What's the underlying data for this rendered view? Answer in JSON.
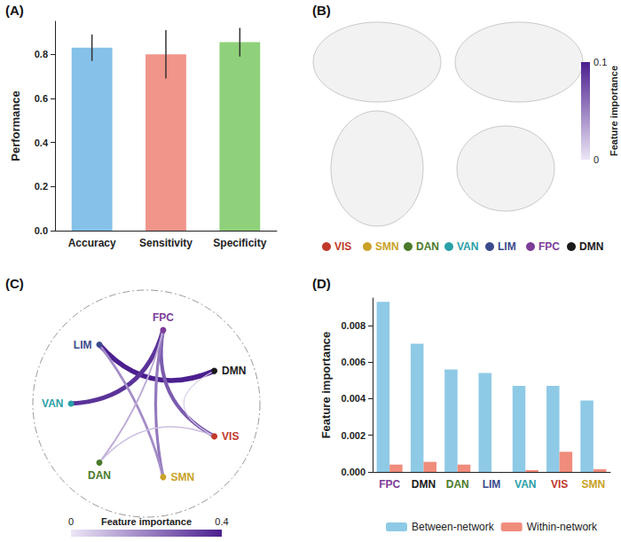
{
  "chart_data": [
    {
      "type": "bar",
      "panel_label": "(A)",
      "categories": [
        "Accuracy",
        "Sensitivity",
        "Specificity"
      ],
      "values": [
        0.83,
        0.8,
        0.855
      ],
      "errors": [
        0.06,
        0.11,
        0.065
      ],
      "colors": [
        "#85c1e9",
        "#f1948a",
        "#8fd17a"
      ],
      "y_label": "Performance",
      "ylim": [
        0,
        0.95
      ],
      "yticks": [
        {
          "value": 0,
          "label": "0.0"
        },
        {
          "value": 0.2,
          "label": "0.2"
        },
        {
          "value": 0.4,
          "label": "0.4"
        },
        {
          "value": 0.6,
          "label": "0.6"
        },
        {
          "value": 0.8,
          "label": "0.8"
        }
      ]
    },
    {
      "type": "network_legend",
      "panel_label": "(B)",
      "items": [
        {
          "name": "VIS",
          "color": "#c0392b"
        },
        {
          "name": "SMN",
          "color": "#c9a227"
        },
        {
          "name": "DAN",
          "color": "#4a7a2a"
        },
        {
          "name": "VAN",
          "color": "#2aa0a8"
        },
        {
          "name": "LIM",
          "color": "#3b4a8c"
        },
        {
          "name": "FPC",
          "color": "#7d3c98"
        },
        {
          "name": "DMN",
          "color": "#1a1a1a"
        }
      ],
      "colorbar": {
        "title": "Feature importance",
        "range": [
          0,
          0.1
        ],
        "ticks": [
          0,
          0.1
        ]
      }
    },
    {
      "type": "chord",
      "panel_label": "(C)",
      "nodes": [
        "VIS",
        "SMN",
        "DAN",
        "VAN",
        "LIM",
        "FPC",
        "DMN"
      ],
      "links": [
        {
          "source": "DMN",
          "target": "LIM",
          "value": 0.4
        },
        {
          "source": "FPC",
          "target": "VAN",
          "value": 0.36
        },
        {
          "source": "FPC",
          "target": "VIS",
          "value": 0.28
        },
        {
          "source": "FPC",
          "target": "SMN",
          "value": 0.22
        },
        {
          "source": "LIM",
          "target": "SMN",
          "value": 0.18
        },
        {
          "source": "FPC",
          "target": "DAN",
          "value": 0.12
        },
        {
          "source": "VIS",
          "target": "DAN",
          "value": 0.08
        },
        {
          "source": "DMN",
          "target": "VIS",
          "value": 0.05
        }
      ],
      "colorbar": {
        "title": "Feature importance",
        "range": [
          0,
          0.4
        ],
        "ticks": [
          0,
          0.4
        ]
      }
    },
    {
      "type": "bar",
      "panel_label": "(D)",
      "categories": [
        "FPC",
        "DMN",
        "DAN",
        "LIM",
        "VAN",
        "VIS",
        "SMN"
      ],
      "series": [
        {
          "name": "Between-network",
          "color": "#8ecae6",
          "values": [
            0.0093,
            0.007,
            0.0056,
            0.0054,
            0.0047,
            0.0047,
            0.0039
          ]
        },
        {
          "name": "Within-network",
          "color": "#f08c7c",
          "values": [
            0.0004,
            0.00055,
            0.0004,
            0,
            0.0001,
            0.0011,
            0.00015
          ]
        }
      ],
      "y_label": "Feature importance",
      "ylim": [
        0,
        0.0095
      ],
      "yticks": [
        {
          "value": 0,
          "label": "0.000"
        },
        {
          "value": 0.002,
          "label": "0.002"
        },
        {
          "value": 0.004,
          "label": "0.004"
        },
        {
          "value": 0.006,
          "label": "0.006"
        },
        {
          "value": 0.008,
          "label": "0.008"
        }
      ],
      "legend": "bottom"
    }
  ]
}
